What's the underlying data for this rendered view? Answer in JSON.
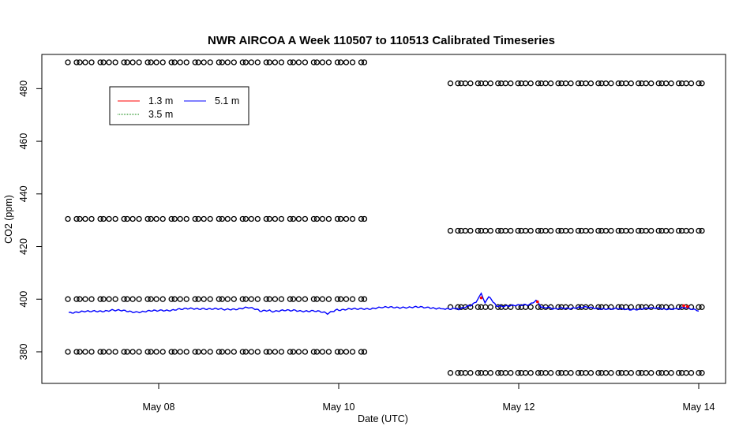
{
  "chart_data": {
    "type": "line",
    "title": "NWR AIRCOA A  Week 110507 to 110513  Calibrated Timeseries",
    "xlabel": "Date (UTC)",
    "ylabel": "CO2 (ppm)",
    "xlim": [
      "2011-05-07T00:00",
      "2011-05-14T00:00"
    ],
    "ylim": [
      368,
      493
    ],
    "x_ticks": [
      {
        "date": "2011-05-08",
        "label": "May 08"
      },
      {
        "date": "2011-05-10",
        "label": "May 10"
      },
      {
        "date": "2011-05-12",
        "label": "May 12"
      },
      {
        "date": "2011-05-14",
        "label": "May 14"
      }
    ],
    "y_ticks": [
      380,
      400,
      420,
      440,
      460,
      480
    ],
    "legend": {
      "position": "top-left",
      "entries": [
        {
          "label": "1.3 m",
          "color": "#ff0000"
        },
        {
          "label": "5.1 m",
          "color": "#0000ff"
        },
        {
          "label": "3.5 m",
          "color": "#008000"
        }
      ]
    },
    "series": [
      {
        "name": "5.1 m",
        "color": "#0000ff",
        "points": [
          [
            "2011-05-07T00:00",
            395.0
          ],
          [
            "2011-05-07T06:00",
            395.3
          ],
          [
            "2011-05-07T12:00",
            395.8
          ],
          [
            "2011-05-07T18:00",
            395.2
          ],
          [
            "2011-05-08T00:00",
            395.6
          ],
          [
            "2011-05-08T06:00",
            396.2
          ],
          [
            "2011-05-08T12:00",
            396.5
          ],
          [
            "2011-05-08T18:00",
            396.0
          ],
          [
            "2011-05-09T00:00",
            396.8
          ],
          [
            "2011-05-09T03:00",
            395.6
          ],
          [
            "2011-05-09T06:00",
            395.5
          ],
          [
            "2011-05-09T12:00",
            395.7
          ],
          [
            "2011-05-09T18:00",
            395.4
          ],
          [
            "2011-05-09T21:00",
            394.6
          ],
          [
            "2011-05-10T00:00",
            396.0
          ],
          [
            "2011-05-10T06:00",
            396.3
          ],
          [
            "2011-05-10T12:00",
            396.8
          ],
          [
            "2011-05-10T18:00",
            397.0
          ],
          [
            "2011-05-11T00:00",
            396.8
          ],
          [
            "2011-05-11T04:00",
            396.5
          ],
          [
            "2011-05-11T08:00",
            396.4
          ],
          [
            "2011-05-11T11:00",
            397.5
          ],
          [
            "2011-05-11T13:00",
            399.5
          ],
          [
            "2011-05-11T14:00",
            402.0
          ],
          [
            "2011-05-11T15:00",
            399.0
          ],
          [
            "2011-05-11T16:00",
            401.0
          ],
          [
            "2011-05-11T18:00",
            397.5
          ],
          [
            "2011-05-12T00:00",
            397.5
          ],
          [
            "2011-05-12T03:00",
            398.0
          ],
          [
            "2011-05-12T05:00",
            399.5
          ],
          [
            "2011-05-12T06:00",
            397.0
          ],
          [
            "2011-05-12T09:00",
            396.5
          ],
          [
            "2011-05-12T12:00",
            396.6
          ],
          [
            "2011-05-12T18:00",
            396.8
          ],
          [
            "2011-05-13T00:00",
            396.3
          ],
          [
            "2011-05-13T06:00",
            396.2
          ],
          [
            "2011-05-13T12:00",
            396.5
          ],
          [
            "2011-05-13T18:00",
            396.3
          ],
          [
            "2011-05-13T21:00",
            396.8
          ],
          [
            "2011-05-14T00:00",
            395.5
          ]
        ]
      },
      {
        "name": "1.3 m",
        "color": "#ff0000",
        "points": [
          [
            "2011-05-11T14:00",
            400.5
          ],
          [
            "2011-05-12T05:00",
            399.0
          ],
          [
            "2011-05-13T20:00",
            397.5
          ],
          [
            "2011-05-13T21:00",
            397.2
          ]
        ]
      },
      {
        "name": "calibration standards",
        "color": "#000000",
        "marker": "open-circle",
        "segments": [
          {
            "start": "2011-05-07T00:00",
            "end": "2011-05-10T06:00",
            "values": [
              490,
              430.5,
              400,
              380
            ]
          },
          {
            "start": "2011-05-11T06:00",
            "end": "2011-05-14T00:00",
            "values": [
              482,
              426,
              397,
              372
            ]
          }
        ]
      }
    ]
  }
}
